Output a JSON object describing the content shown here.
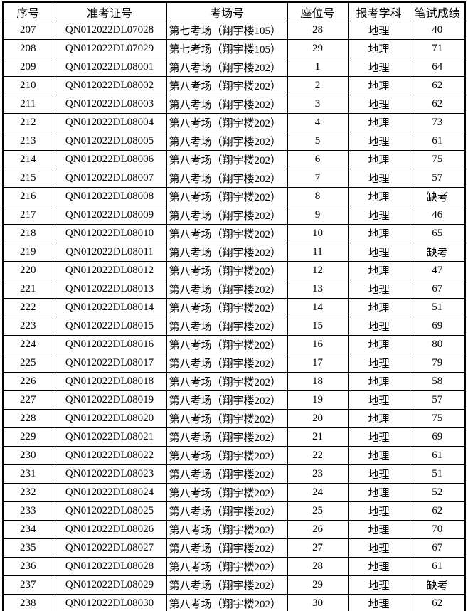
{
  "table": {
    "headers": [
      "序号",
      "准考证号",
      "考场号",
      "座位号",
      "报考学科",
      "笔试成绩"
    ],
    "column_keys": [
      "seq",
      "ticket",
      "room",
      "seat",
      "subject",
      "score"
    ],
    "rows": [
      {
        "seq": "207",
        "ticket": "QN012022DL07028",
        "room": "第七考场（翔宇楼105）",
        "seat": "28",
        "subject": "地理",
        "score": "40"
      },
      {
        "seq": "208",
        "ticket": "QN012022DL07029",
        "room": "第七考场（翔宇楼105）",
        "seat": "29",
        "subject": "地理",
        "score": "71"
      },
      {
        "seq": "209",
        "ticket": "QN012022DL08001",
        "room": "第八考场（翔宇楼202）",
        "seat": "1",
        "subject": "地理",
        "score": "64"
      },
      {
        "seq": "210",
        "ticket": "QN012022DL08002",
        "room": "第八考场（翔宇楼202）",
        "seat": "2",
        "subject": "地理",
        "score": "62"
      },
      {
        "seq": "211",
        "ticket": "QN012022DL08003",
        "room": "第八考场（翔宇楼202）",
        "seat": "3",
        "subject": "地理",
        "score": "62"
      },
      {
        "seq": "212",
        "ticket": "QN012022DL08004",
        "room": "第八考场（翔宇楼202）",
        "seat": "4",
        "subject": "地理",
        "score": "73"
      },
      {
        "seq": "213",
        "ticket": "QN012022DL08005",
        "room": "第八考场（翔宇楼202）",
        "seat": "5",
        "subject": "地理",
        "score": "61"
      },
      {
        "seq": "214",
        "ticket": "QN012022DL08006",
        "room": "第八考场（翔宇楼202）",
        "seat": "6",
        "subject": "地理",
        "score": "75"
      },
      {
        "seq": "215",
        "ticket": "QN012022DL08007",
        "room": "第八考场（翔宇楼202）",
        "seat": "7",
        "subject": "地理",
        "score": "57"
      },
      {
        "seq": "216",
        "ticket": "QN012022DL08008",
        "room": "第八考场（翔宇楼202）",
        "seat": "8",
        "subject": "地理",
        "score": "缺考"
      },
      {
        "seq": "217",
        "ticket": "QN012022DL08009",
        "room": "第八考场（翔宇楼202）",
        "seat": "9",
        "subject": "地理",
        "score": "46"
      },
      {
        "seq": "218",
        "ticket": "QN012022DL08010",
        "room": "第八考场（翔宇楼202）",
        "seat": "10",
        "subject": "地理",
        "score": "65"
      },
      {
        "seq": "219",
        "ticket": "QN012022DL08011",
        "room": "第八考场（翔宇楼202）",
        "seat": "11",
        "subject": "地理",
        "score": "缺考"
      },
      {
        "seq": "220",
        "ticket": "QN012022DL08012",
        "room": "第八考场（翔宇楼202）",
        "seat": "12",
        "subject": "地理",
        "score": "47"
      },
      {
        "seq": "221",
        "ticket": "QN012022DL08013",
        "room": "第八考场（翔宇楼202）",
        "seat": "13",
        "subject": "地理",
        "score": "67"
      },
      {
        "seq": "222",
        "ticket": "QN012022DL08014",
        "room": "第八考场（翔宇楼202）",
        "seat": "14",
        "subject": "地理",
        "score": "51"
      },
      {
        "seq": "223",
        "ticket": "QN012022DL08015",
        "room": "第八考场（翔宇楼202）",
        "seat": "15",
        "subject": "地理",
        "score": "69"
      },
      {
        "seq": "224",
        "ticket": "QN012022DL08016",
        "room": "第八考场（翔宇楼202）",
        "seat": "16",
        "subject": "地理",
        "score": "80"
      },
      {
        "seq": "225",
        "ticket": "QN012022DL08017",
        "room": "第八考场（翔宇楼202）",
        "seat": "17",
        "subject": "地理",
        "score": "79"
      },
      {
        "seq": "226",
        "ticket": "QN012022DL08018",
        "room": "第八考场（翔宇楼202）",
        "seat": "18",
        "subject": "地理",
        "score": "58"
      },
      {
        "seq": "227",
        "ticket": "QN012022DL08019",
        "room": "第八考场（翔宇楼202）",
        "seat": "19",
        "subject": "地理",
        "score": "57"
      },
      {
        "seq": "228",
        "ticket": "QN012022DL08020",
        "room": "第八考场（翔宇楼202）",
        "seat": "20",
        "subject": "地理",
        "score": "75"
      },
      {
        "seq": "229",
        "ticket": "QN012022DL08021",
        "room": "第八考场（翔宇楼202）",
        "seat": "21",
        "subject": "地理",
        "score": "69"
      },
      {
        "seq": "230",
        "ticket": "QN012022DL08022",
        "room": "第八考场（翔宇楼202）",
        "seat": "22",
        "subject": "地理",
        "score": "61"
      },
      {
        "seq": "231",
        "ticket": "QN012022DL08023",
        "room": "第八考场（翔宇楼202）",
        "seat": "23",
        "subject": "地理",
        "score": "51"
      },
      {
        "seq": "232",
        "ticket": "QN012022DL08024",
        "room": "第八考场（翔宇楼202）",
        "seat": "24",
        "subject": "地理",
        "score": "52"
      },
      {
        "seq": "233",
        "ticket": "QN012022DL08025",
        "room": "第八考场（翔宇楼202）",
        "seat": "25",
        "subject": "地理",
        "score": "62"
      },
      {
        "seq": "234",
        "ticket": "QN012022DL08026",
        "room": "第八考场（翔宇楼202）",
        "seat": "26",
        "subject": "地理",
        "score": "70"
      },
      {
        "seq": "235",
        "ticket": "QN012022DL08027",
        "room": "第八考场（翔宇楼202）",
        "seat": "27",
        "subject": "地理",
        "score": "67"
      },
      {
        "seq": "236",
        "ticket": "QN012022DL08028",
        "room": "第八考场（翔宇楼202）",
        "seat": "28",
        "subject": "地理",
        "score": "61"
      },
      {
        "seq": "237",
        "ticket": "QN012022DL08029",
        "room": "第八考场（翔宇楼202）",
        "seat": "29",
        "subject": "地理",
        "score": "缺考"
      },
      {
        "seq": "238",
        "ticket": "QN012022DL08030",
        "room": "第八考场（翔宇楼202）",
        "seat": "30",
        "subject": "地理",
        "score": "62"
      }
    ]
  },
  "colors": {
    "border": "#000000",
    "background": "#ffffff",
    "text": "#000000"
  }
}
